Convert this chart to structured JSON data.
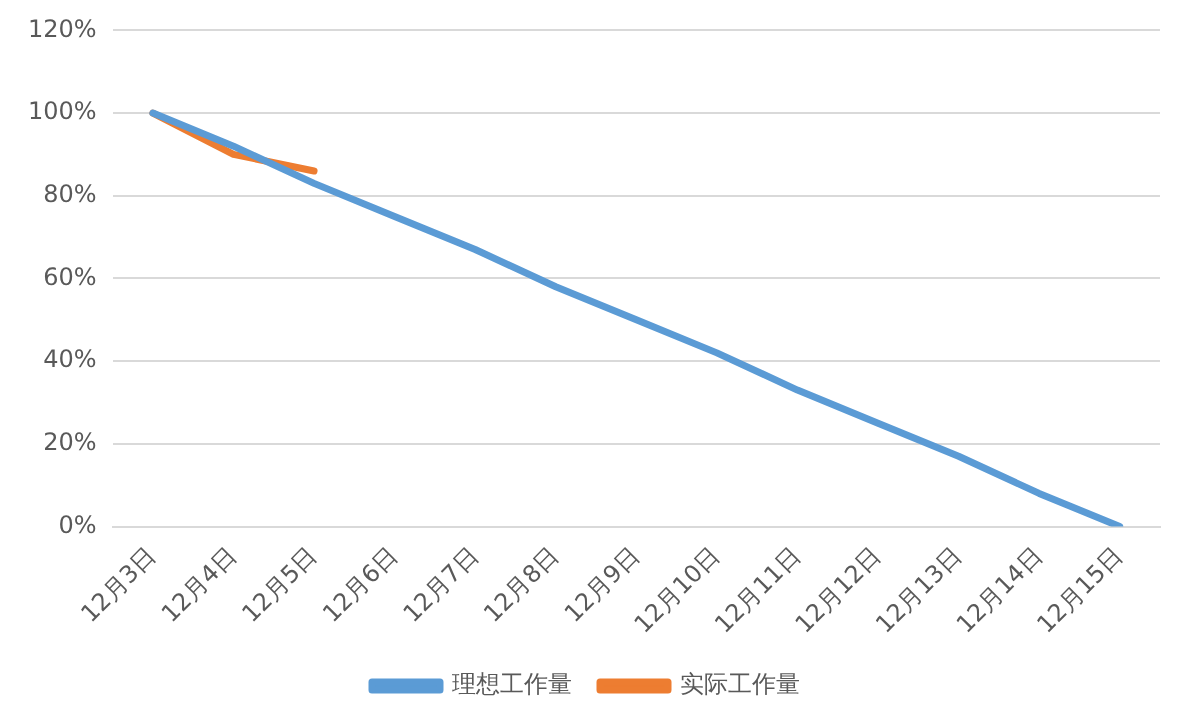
{
  "chart_data": {
    "type": "line",
    "categories": [
      "12月3日",
      "12月4日",
      "12月5日",
      "12月6日",
      "12月7日",
      "12月8日",
      "12月9日",
      "12月10日",
      "12月11日",
      "12月12日",
      "12月13日",
      "12月14日",
      "12月15日"
    ],
    "series": [
      {
        "name": "理想工作量",
        "color": "#5b9bd5",
        "values": [
          100,
          92,
          83,
          75,
          67,
          58,
          50,
          42,
          33,
          25,
          17,
          8,
          0
        ]
      },
      {
        "name": "实际工作量",
        "color": "#ed7d31",
        "values": [
          100,
          90,
          86,
          null,
          null,
          null,
          null,
          null,
          null,
          null,
          null,
          null,
          null
        ]
      }
    ],
    "ylim": [
      0,
      120
    ],
    "yticks": [
      {
        "value": 0,
        "label": "0%"
      },
      {
        "value": 20,
        "label": "20%"
      },
      {
        "value": 40,
        "label": "40%"
      },
      {
        "value": 60,
        "label": "60%"
      },
      {
        "value": 80,
        "label": "80%"
      },
      {
        "value": 100,
        "label": "100%"
      },
      {
        "value": 120,
        "label": "120%"
      }
    ],
    "grid": "y",
    "legend": "bottom",
    "marker": "none",
    "line_style": "solid"
  }
}
